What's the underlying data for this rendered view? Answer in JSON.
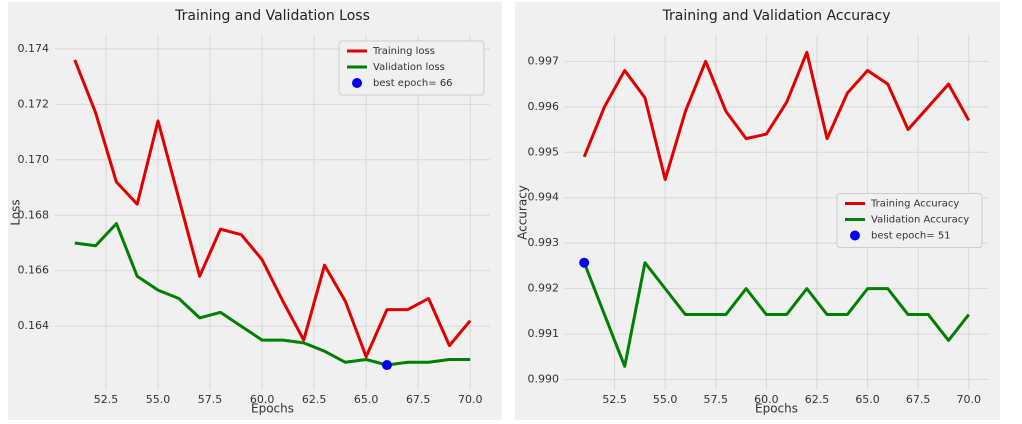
{
  "chart_data": [
    {
      "type": "line",
      "title": "Training and Validation Loss",
      "xlabel": "Epochs",
      "ylabel": "Loss",
      "x": [
        51,
        52,
        53,
        54,
        55,
        56,
        57,
        58,
        59,
        60,
        61,
        62,
        63,
        64,
        65,
        66,
        67,
        68,
        69,
        70
      ],
      "series": [
        {
          "name": "Training loss",
          "color": "#e00000",
          "values": [
            0.1736,
            0.1717,
            0.1692,
            0.1684,
            0.1714,
            0.1686,
            0.1658,
            0.1675,
            0.1673,
            0.1664,
            0.1649,
            0.1635,
            0.1662,
            0.1649,
            0.1629,
            0.1646,
            0.1646,
            0.165,
            0.1633,
            0.1642
          ]
        },
        {
          "name": "Validation loss",
          "color": "#008000",
          "values": [
            0.167,
            0.1669,
            0.1677,
            0.1658,
            0.1653,
            0.165,
            0.1643,
            0.1645,
            0.164,
            0.1635,
            0.1635,
            0.1634,
            0.1631,
            0.1627,
            0.1628,
            0.1626,
            0.1627,
            0.1627,
            0.1628,
            0.1628
          ]
        }
      ],
      "best": {
        "name": "best epoch= 66",
        "color": "#0000ee",
        "x": 66,
        "y": 0.1626
      },
      "legend": "upper right",
      "grid": true,
      "xlim": [
        50.05,
        70.95
      ],
      "ylim": [
        0.1617,
        0.1745
      ],
      "xticks": [
        52.5,
        {
          "value": 55,
          "label": "55.0"
        },
        57.5,
        {
          "value": 60,
          "label": "60.0"
        },
        62.5,
        {
          "value": 65,
          "label": "65.0"
        },
        67.5,
        {
          "value": 70,
          "label": "70.0"
        }
      ],
      "yticks": [
        0.164,
        0.166,
        0.168,
        {
          "value": 0.17,
          "label": "0.170"
        },
        0.172,
        0.174
      ]
    },
    {
      "type": "line",
      "title": "Training and Validation Accuracy",
      "xlabel": "Epochs",
      "ylabel": "Accuracy",
      "x": [
        51,
        52,
        53,
        54,
        55,
        56,
        57,
        58,
        59,
        60,
        61,
        62,
        63,
        64,
        65,
        66,
        67,
        68,
        69,
        70
      ],
      "series": [
        {
          "name": "Training Accuracy",
          "color": "#e00000",
          "values": [
            0.9949,
            0.996,
            0.9968,
            0.9962,
            0.9944,
            0.9959,
            0.997,
            0.9959,
            0.9953,
            0.9954,
            0.9961,
            0.9972,
            0.9953,
            0.9963,
            0.9968,
            0.9965,
            0.9955,
            0.996,
            0.9965,
            0.9957
          ]
        },
        {
          "name": "Validation Accuracy",
          "color": "#008000",
          "values": [
            0.99257,
            0.99143,
            0.99029,
            0.99257,
            0.992,
            0.99143,
            0.99143,
            0.99143,
            0.992,
            0.99143,
            0.99143,
            0.992,
            0.99143,
            0.99143,
            0.992,
            0.992,
            0.99143,
            0.99143,
            0.99086,
            0.99143
          ]
        }
      ],
      "best": {
        "name": "best epoch= 51",
        "color": "#0000ee",
        "x": 51,
        "y": 0.99257
      },
      "legend": "center right",
      "grid": true,
      "xlim": [
        50.05,
        70.95
      ],
      "ylim": [
        0.98977,
        0.99758
      ],
      "xticks": [
        52.5,
        {
          "value": 55,
          "label": "55.0"
        },
        57.5,
        {
          "value": 60,
          "label": "60.0"
        },
        62.5,
        {
          "value": 65,
          "label": "65.0"
        },
        67.5,
        {
          "value": 70,
          "label": "70.0"
        }
      ],
      "yticks": [
        {
          "value": 0.99,
          "label": "0.990"
        },
        0.991,
        0.992,
        0.993,
        0.994,
        0.995,
        0.996,
        0.997
      ]
    }
  ]
}
